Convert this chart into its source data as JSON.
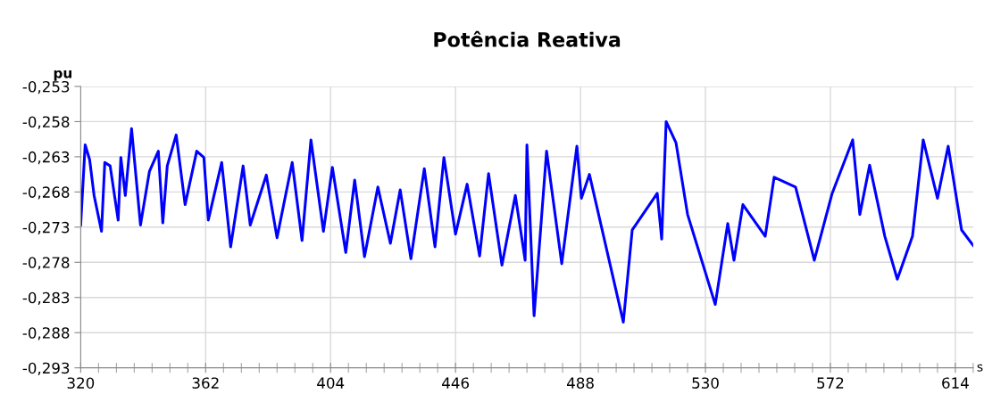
{
  "chart_data": {
    "type": "line",
    "title": "Potência Reativa",
    "ylabel": "pu",
    "xlabel": "s",
    "x": [
      320,
      321.5,
      323,
      324.5,
      327,
      328.1,
      329.9,
      332.6,
      333.5,
      335,
      337.1,
      340.1,
      343.1,
      346.1,
      347.6,
      349.1,
      352.1,
      355.1,
      359,
      361.4,
      362.9,
      367.4,
      370.4,
      374.6,
      377,
      382.4,
      386,
      391.1,
      394.4,
      397.4,
      401.6,
      404.6,
      409.1,
      412.1,
      415.4,
      419.9,
      424.1,
      427.4,
      431,
      435.5,
      439.1,
      442.1,
      446,
      449.9,
      454.1,
      457.1,
      461.6,
      466.1,
      469.4,
      470,
      472.4,
      476.6,
      481.7,
      486.8,
      488.3,
      491,
      502.4,
      505.4,
      513.8,
      515.3,
      516.8,
      520.1,
      524,
      533.3,
      537.5,
      539.6,
      542.6,
      550.1,
      553.1,
      560.3,
      566.6,
      572.6,
      579.5,
      581.9,
      585.2,
      590.3,
      594.5,
      599.6,
      603.2,
      608,
      611.6,
      616.1,
      620
    ],
    "series": [
      {
        "color": "#0000ff",
        "values": [
          -0.2727,
          -0.2613,
          -0.2634,
          -0.2685,
          -0.2736,
          -0.2638,
          -0.2643,
          -0.272,
          -0.2631,
          -0.2685,
          -0.259,
          -0.2727,
          -0.2651,
          -0.2622,
          -0.2724,
          -0.2643,
          -0.2599,
          -0.2698,
          -0.2622,
          -0.2631,
          -0.272,
          -0.2638,
          -0.2758,
          -0.2643,
          -0.2727,
          -0.2656,
          -0.2745,
          -0.2638,
          -0.2749,
          -0.2606,
          -0.2736,
          -0.2645,
          -0.2766,
          -0.2663,
          -0.2772,
          -0.2673,
          -0.2753,
          -0.2677,
          -0.2775,
          -0.2647,
          -0.2758,
          -0.2631,
          -0.274,
          -0.2669,
          -0.2771,
          -0.2654,
          -0.2784,
          -0.2685,
          -0.2777,
          -0.2613,
          -0.2856,
          -0.2622,
          -0.2782,
          -0.2615,
          -0.2689,
          -0.2655,
          -0.2865,
          -0.2734,
          -0.2682,
          -0.2747,
          -0.258,
          -0.261,
          -0.2712,
          -0.284,
          -0.2725,
          -0.2777,
          -0.2698,
          -0.2743,
          -0.2659,
          -0.2673,
          -0.2777,
          -0.2682,
          -0.2606,
          -0.2712,
          -0.2642,
          -0.2743,
          -0.2804,
          -0.2743,
          -0.2606,
          -0.2689,
          -0.2615,
          -0.2734,
          -0.2756
        ]
      }
    ],
    "xlim": [
      320,
      620
    ],
    "xticks": [
      320,
      {
        "value": 326,
        "label": null
      },
      {
        "value": 332,
        "label": null
      },
      {
        "value": 338,
        "label": null
      },
      {
        "value": 344,
        "label": null
      },
      {
        "value": 350,
        "label": null
      },
      {
        "value": 356,
        "label": null
      },
      362,
      {
        "value": 368,
        "label": null
      },
      {
        "value": 374,
        "label": null
      },
      {
        "value": 380,
        "label": null
      },
      {
        "value": 386,
        "label": null
      },
      {
        "value": 392,
        "label": null
      },
      {
        "value": 398,
        "label": null
      },
      404,
      {
        "value": 410,
        "label": null
      },
      {
        "value": 416,
        "label": null
      },
      {
        "value": 422,
        "label": null
      },
      {
        "value": 428,
        "label": null
      },
      {
        "value": 434,
        "label": null
      },
      {
        "value": 440,
        "label": null
      },
      446,
      {
        "value": 452,
        "label": null
      },
      {
        "value": 458,
        "label": null
      },
      {
        "value": 464,
        "label": null
      },
      {
        "value": 470,
        "label": null
      },
      {
        "value": 476,
        "label": null
      },
      {
        "value": 482,
        "label": null
      },
      488,
      {
        "value": 494,
        "label": null
      },
      {
        "value": 500,
        "label": null
      },
      {
        "value": 506,
        "label": null
      },
      {
        "value": 512,
        "label": null
      },
      {
        "value": 518,
        "label": null
      },
      {
        "value": 524,
        "label": null
      },
      530,
      {
        "value": 536,
        "label": null
      },
      {
        "value": 542,
        "label": null
      },
      {
        "value": 548,
        "label": null
      },
      {
        "value": 554,
        "label": null
      },
      {
        "value": 560,
        "label": null
      },
      {
        "value": 566,
        "label": null
      },
      572,
      {
        "value": 578,
        "label": null
      },
      {
        "value": 584,
        "label": null
      },
      {
        "value": 590,
        "label": null
      },
      {
        "value": 596,
        "label": null
      },
      {
        "value": 602,
        "label": null
      },
      {
        "value": 608,
        "label": null
      },
      614,
      {
        "value": 620,
        "label": null
      }
    ],
    "ylim": [
      -0.293,
      -0.253
    ],
    "yticks": [
      {
        "value": -0.293,
        "label": "-0,293"
      },
      {
        "value": -0.288,
        "label": "-0,288"
      },
      {
        "value": -0.283,
        "label": "-0,283"
      },
      {
        "value": -0.278,
        "label": "-0,278"
      },
      {
        "value": -0.273,
        "label": "-0,273"
      },
      {
        "value": -0.268,
        "label": "-0,268"
      },
      {
        "value": -0.263,
        "label": "-0,263"
      },
      {
        "value": -0.258,
        "label": "-0,258"
      },
      {
        "value": -0.253,
        "label": "-0,253"
      }
    ],
    "grid": true,
    "marker": "none",
    "line_style": "solid"
  }
}
